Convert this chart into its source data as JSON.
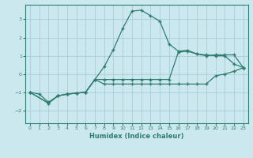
{
  "xlabel": "Humidex (Indice chaleur)",
  "bg_color": "#cce8ef",
  "grid_color": "#aacdd8",
  "line_color": "#2e7d6e",
  "xlim": [
    -0.5,
    23.5
  ],
  "ylim": [
    -2.7,
    3.8
  ],
  "xticks": [
    0,
    1,
    2,
    3,
    4,
    5,
    6,
    7,
    8,
    9,
    10,
    11,
    12,
    13,
    14,
    15,
    16,
    17,
    18,
    19,
    20,
    21,
    22,
    23
  ],
  "yticks": [
    -2,
    -1,
    0,
    1,
    2,
    3
  ],
  "line2_x": [
    0,
    1,
    2,
    3,
    4,
    5,
    6,
    7,
    8,
    9,
    10,
    11,
    12,
    13,
    14,
    15,
    16,
    17,
    18,
    19,
    20,
    21,
    22,
    23
  ],
  "line2_y": [
    -1.0,
    -1.1,
    -1.55,
    -1.2,
    -1.1,
    -1.05,
    -1.0,
    -0.3,
    0.4,
    1.35,
    2.5,
    3.45,
    3.5,
    3.2,
    2.9,
    1.65,
    1.25,
    1.3,
    1.1,
    1.05,
    1.0,
    1.0,
    0.55,
    0.35
  ],
  "line1_x": [
    0,
    2,
    3,
    4,
    5,
    6,
    7,
    8,
    9,
    10,
    11,
    12,
    13,
    14,
    15,
    16,
    17,
    18,
    19,
    20,
    21,
    22,
    23
  ],
  "line1_y": [
    -1.0,
    -1.6,
    -1.2,
    -1.1,
    -1.05,
    -1.0,
    -0.3,
    -0.3,
    -0.3,
    -0.3,
    -0.3,
    -0.3,
    -0.3,
    -0.3,
    -0.3,
    1.2,
    1.25,
    1.1,
    1.0,
    1.05,
    1.05,
    1.05,
    0.35
  ],
  "line3_x": [
    0,
    2,
    3,
    4,
    5,
    6,
    7,
    8,
    9,
    10,
    11,
    12,
    13,
    14,
    15,
    16,
    17,
    18,
    19,
    20,
    21,
    22,
    23
  ],
  "line3_y": [
    -1.0,
    -1.6,
    -1.2,
    -1.1,
    -1.05,
    -1.0,
    -0.3,
    -0.55,
    -0.55,
    -0.55,
    -0.55,
    -0.55,
    -0.55,
    -0.55,
    -0.55,
    -0.55,
    -0.55,
    -0.55,
    -0.55,
    -0.1,
    0.0,
    0.15,
    0.35
  ]
}
